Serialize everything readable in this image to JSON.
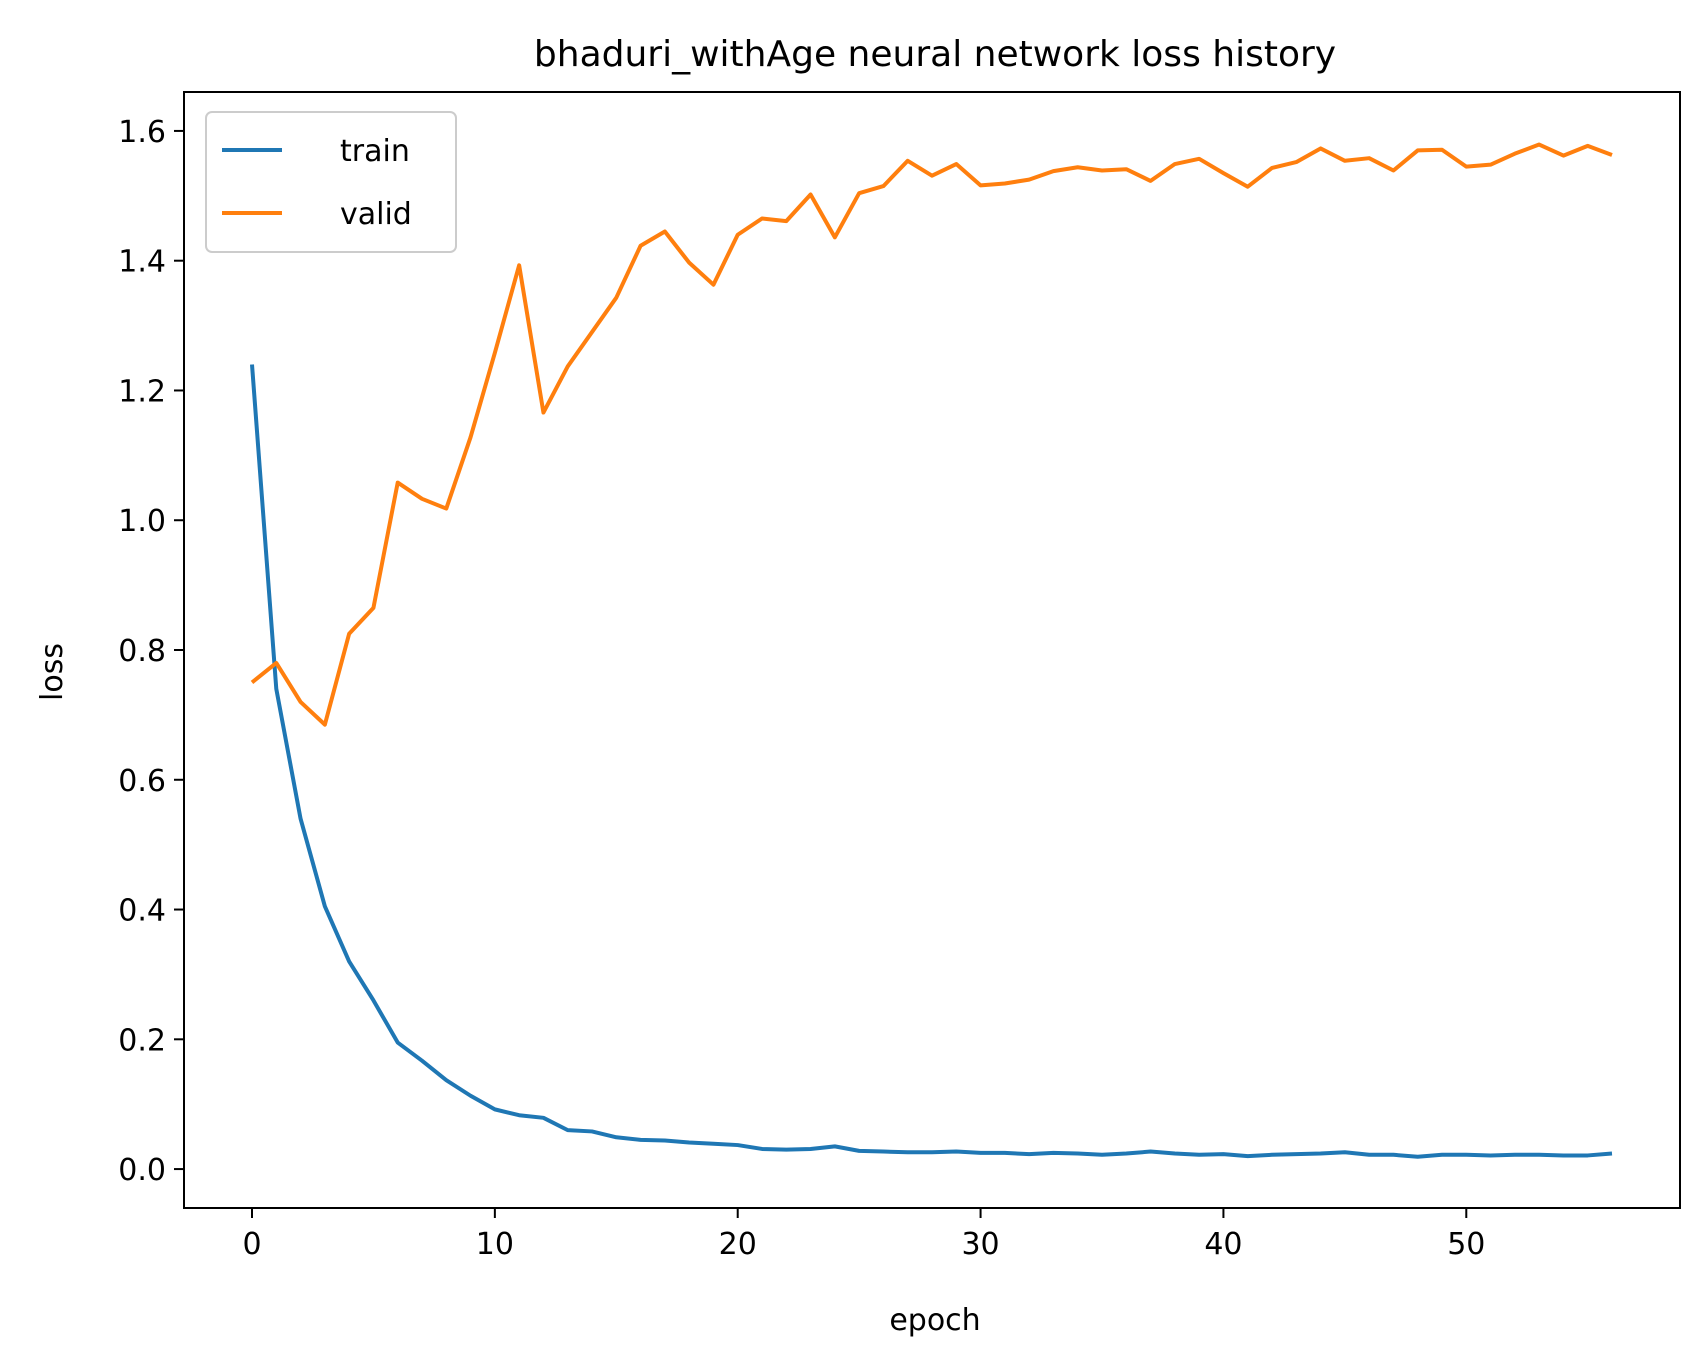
{
  "chart_data": {
    "type": "line",
    "title": "bhaduri_withAge neural network loss history",
    "xlabel": "epoch",
    "ylabel": "loss",
    "xlim": [
      -2.8,
      58.8
    ],
    "ylim": [
      -0.06,
      1.66
    ],
    "xticks": [
      0,
      10,
      20,
      30,
      40,
      50
    ],
    "xtick_labels": [
      "0",
      "10",
      "20",
      "30",
      "40",
      "50"
    ],
    "yticks": [
      0.0,
      0.2,
      0.4,
      0.6,
      0.8,
      1.0,
      1.2,
      1.4,
      1.6
    ],
    "ytick_labels": [
      "0.0",
      "0.2",
      "0.4",
      "0.6",
      "0.8",
      "1.0",
      "1.2",
      "1.4",
      "1.6"
    ],
    "grid": false,
    "legend_position": "top-left",
    "x": [
      0,
      1,
      2,
      3,
      4,
      5,
      6,
      7,
      8,
      9,
      10,
      11,
      12,
      13,
      14,
      15,
      16,
      17,
      18,
      19,
      20,
      21,
      22,
      23,
      24,
      25,
      26,
      27,
      28,
      29,
      30,
      31,
      32,
      33,
      34,
      35,
      36,
      37,
      38,
      39,
      40,
      41,
      42,
      43,
      44,
      45,
      46,
      47,
      48,
      49,
      50,
      51,
      52,
      53,
      54,
      55,
      56
    ],
    "series": [
      {
        "name": "train",
        "color": "#1f77b4",
        "values": [
          1.24,
          0.74,
          0.54,
          0.405,
          0.32,
          0.26,
          0.195,
          0.167,
          0.137,
          0.113,
          0.092,
          0.083,
          0.079,
          0.06,
          0.058,
          0.049,
          0.045,
          0.044,
          0.041,
          0.039,
          0.037,
          0.031,
          0.03,
          0.031,
          0.035,
          0.028,
          0.027,
          0.026,
          0.026,
          0.027,
          0.025,
          0.025,
          0.023,
          0.025,
          0.024,
          0.022,
          0.024,
          0.027,
          0.024,
          0.022,
          0.023,
          0.02,
          0.022,
          0.023,
          0.024,
          0.026,
          0.022,
          0.022,
          0.019,
          0.022,
          0.022,
          0.021,
          0.022,
          0.022,
          0.021,
          0.021,
          0.024
        ]
      },
      {
        "name": "valid",
        "color": "#ff7f0e",
        "values": [
          0.75,
          0.78,
          0.72,
          0.685,
          0.825,
          0.865,
          1.058,
          1.033,
          1.018,
          1.128,
          1.258,
          1.393,
          1.166,
          1.237,
          1.29,
          1.343,
          1.423,
          1.445,
          1.397,
          1.363,
          1.44,
          1.465,
          1.461,
          1.502,
          1.436,
          1.504,
          1.515,
          1.554,
          1.531,
          1.549,
          1.516,
          1.519,
          1.525,
          1.538,
          1.544,
          1.539,
          1.541,
          1.523,
          1.549,
          1.557,
          1.535,
          1.514,
          1.543,
          1.552,
          1.573,
          1.554,
          1.558,
          1.539,
          1.57,
          1.571,
          1.545,
          1.548,
          1.565,
          1.579,
          1.562,
          1.577,
          1.563
        ]
      }
    ]
  }
}
